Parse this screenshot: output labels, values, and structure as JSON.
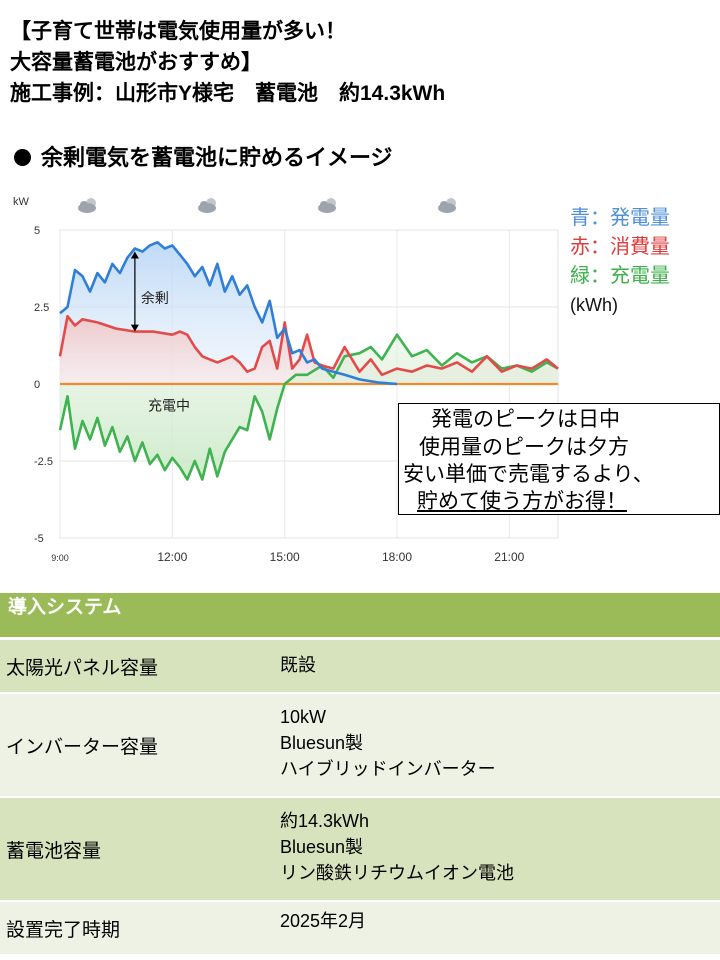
{
  "title": {
    "line1": "【子育て世帯は電気使用量が多い！",
    "line2": "大容量蓄電池がおすすめ】",
    "line3": "施工事例：山形市Y様宅　蓄電池　約14.3kWh"
  },
  "section_heading": "余剰電気を蓄電池に貯めるイメージ",
  "chart_data": {
    "type": "line",
    "unit_label": "kW",
    "ylim": [
      -5,
      5
    ],
    "y_ticks": [
      5,
      2.5,
      0,
      -2.5,
      -5
    ],
    "y_tick_labels": [
      "5",
      "2.5",
      "0",
      "-2.5",
      "-5"
    ],
    "x_range_hours": [
      9,
      22.3
    ],
    "x_ticks": [
      9,
      12,
      15,
      18,
      21
    ],
    "x_tick_labels": [
      "9:00",
      "12:00",
      "15:00",
      "18:00",
      "21:00"
    ],
    "weather_icons": [
      "cloud-sun-icon",
      "cloud-sun-icon",
      "cloud-sun-icon",
      "cloud-sun-icon"
    ],
    "grid": true,
    "legend_position": "right",
    "legend": [
      {
        "text": "青：発電量",
        "color": "#4f8fd7"
      },
      {
        "text": "赤：消費量",
        "color": "#e03b3b"
      },
      {
        "text": "緑：充電量",
        "color": "#3db04b"
      }
    ],
    "legend_unit": "(kWh)",
    "annotations": {
      "surplus": "余剰",
      "charging": "充電中"
    },
    "colors": {
      "generation": "#2f7fd8",
      "consumption": "#e34a4a",
      "charge": "#3fb34f",
      "baseline": "#f08a2c"
    },
    "series": [
      {
        "key": "generation",
        "x": [
          9,
          9.2,
          9.4,
          9.6,
          9.8,
          10,
          10.2,
          10.4,
          10.6,
          10.8,
          11,
          11.2,
          11.4,
          11.6,
          11.8,
          12,
          12.2,
          12.4,
          12.6,
          12.8,
          13,
          13.2,
          13.4,
          13.6,
          13.8,
          14,
          14.2,
          14.4,
          14.6,
          14.8,
          15,
          15.2,
          15.4,
          15.6,
          15.8,
          16,
          16.3,
          16.6,
          17,
          17.5,
          18
        ],
        "values": [
          2.3,
          2.5,
          3.7,
          3.5,
          3.0,
          3.6,
          3.3,
          3.9,
          3.6,
          4.1,
          4.4,
          4.3,
          4.5,
          4.6,
          4.4,
          4.5,
          4.2,
          3.9,
          3.5,
          3.8,
          3.2,
          3.9,
          3.0,
          3.5,
          2.9,
          3.2,
          2.5,
          2.0,
          2.7,
          1.5,
          1.8,
          1.0,
          1.1,
          0.7,
          0.8,
          0.5,
          0.4,
          0.3,
          0.15,
          0.05,
          0
        ]
      },
      {
        "key": "consumption",
        "x": [
          9,
          9.2,
          9.4,
          9.6,
          10,
          10.5,
          11,
          11.5,
          12,
          12.2,
          12.4,
          12.6,
          12.8,
          13,
          13.2,
          13.4,
          13.6,
          13.8,
          14,
          14.2,
          14.4,
          14.6,
          14.8,
          15,
          15.2,
          15.4,
          15.6,
          15.8,
          16,
          16.3,
          16.6,
          17,
          17.3,
          17.6,
          18,
          18.4,
          18.8,
          19.2,
          19.6,
          20,
          20.4,
          20.8,
          21.2,
          21.6,
          22,
          22.3
        ],
        "values": [
          0.9,
          2.2,
          1.9,
          2.1,
          2.0,
          1.8,
          1.7,
          1.7,
          1.6,
          1.7,
          1.6,
          1.2,
          0.9,
          0.8,
          0.7,
          0.8,
          0.9,
          0.7,
          0.4,
          0.5,
          1.2,
          1.4,
          0.5,
          2.0,
          0.5,
          0.8,
          1.6,
          0.7,
          0.6,
          0.5,
          1.2,
          0.4,
          0.8,
          0.3,
          0.5,
          0.4,
          0.6,
          0.5,
          0.7,
          0.4,
          0.9,
          0.4,
          0.6,
          0.5,
          0.8,
          0.5
        ]
      },
      {
        "key": "charge",
        "x": [
          9,
          9.2,
          9.4,
          9.6,
          9.8,
          10,
          10.2,
          10.4,
          10.6,
          10.8,
          11,
          11.2,
          11.4,
          11.6,
          11.8,
          12,
          12.2,
          12.4,
          12.6,
          12.8,
          13,
          13.2,
          13.4,
          13.6,
          13.8,
          14,
          14.2,
          14.4,
          14.6,
          14.8,
          15,
          15.3,
          15.6,
          16,
          16.3,
          16.6,
          17,
          17.3,
          17.6,
          18,
          18.4,
          18.8,
          19.2,
          19.6,
          20,
          20.4,
          20.8,
          21.2,
          21.6,
          22,
          22.3
        ],
        "values": [
          -1.5,
          -0.4,
          -2.1,
          -1.2,
          -1.8,
          -1.1,
          -2.0,
          -1.4,
          -2.2,
          -1.7,
          -2.5,
          -1.9,
          -2.6,
          -2.3,
          -2.8,
          -2.4,
          -2.7,
          -3.1,
          -2.5,
          -3.1,
          -2.1,
          -3.0,
          -2.2,
          -1.8,
          -1.4,
          -1.5,
          -0.4,
          -0.9,
          -1.8,
          -0.8,
          0.0,
          0.3,
          0.3,
          0.6,
          0.2,
          0.9,
          1.0,
          1.2,
          0.8,
          1.6,
          0.9,
          1.1,
          0.6,
          1.0,
          0.7,
          0.9,
          0.5,
          0.6,
          0.4,
          0.7,
          0.5
        ]
      }
    ]
  },
  "callout": {
    "line1": "発電のピークは日中",
    "line2": "使用量のピークは夕方",
    "line3": "安い単価で売電するより、",
    "line4": "貯めて使う方がお得！"
  },
  "table": {
    "header": "導入システム",
    "rows": [
      {
        "label": "太陽光パネル容量",
        "values": [
          "既設"
        ]
      },
      {
        "label": "インバーター容量",
        "values": [
          "10kW",
          "Bluesun製",
          "ハイブリッドインバーター"
        ]
      },
      {
        "label": "蓄電池容量",
        "values": [
          "約14.3kWh",
          "Bluesun製",
          "リン酸鉄リチウムイオン電池"
        ]
      },
      {
        "label": "設置完了時期",
        "values": [
          "2025年2月"
        ]
      }
    ]
  }
}
